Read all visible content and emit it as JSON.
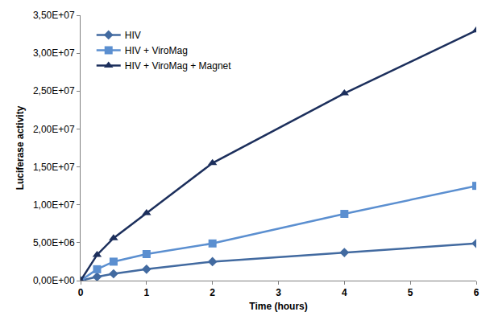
{
  "chart_data": {
    "type": "line",
    "x_label": "Time (hours)",
    "y_label": "Luciferase activity",
    "x": [
      0,
      0.25,
      0.5,
      1,
      2,
      4,
      6
    ],
    "series": [
      {
        "name": "HIV",
        "color": "#426aa0",
        "marker": "diamond",
        "values": [
          0,
          500000,
          900000,
          1500000,
          2500000,
          3700000,
          4900000
        ]
      },
      {
        "name": "HIV + ViroMag",
        "color": "#5b8fd0",
        "marker": "square",
        "values": [
          0,
          1500000,
          2500000,
          3500000,
          4900000,
          8800000,
          12500000
        ]
      },
      {
        "name": "HIV + ViroMag + Magnet",
        "color": "#1c2f5c",
        "marker": "triangle",
        "values": [
          0,
          3400000,
          5600000,
          8900000,
          15500000,
          24700000,
          33000000
        ]
      }
    ],
    "xlim": [
      0,
      6
    ],
    "xticks": [
      0,
      1,
      2,
      3,
      4,
      5,
      6
    ],
    "ylim": [
      0,
      35000000
    ],
    "yticks": [
      {
        "value": 0,
        "label": "0,00E+00"
      },
      {
        "value": 5000000,
        "label": "5,00E+06"
      },
      {
        "value": 10000000,
        "label": "1,00E+07"
      },
      {
        "value": 15000000,
        "label": "1,50E+07"
      },
      {
        "value": 20000000,
        "label": "2,00E+07"
      },
      {
        "value": 25000000,
        "label": "2,50E+07"
      },
      {
        "value": 30000000,
        "label": "3,00E+07"
      },
      {
        "value": 35000000,
        "label": "3,50E+07"
      }
    ],
    "grid": false,
    "legend": "upper left"
  }
}
